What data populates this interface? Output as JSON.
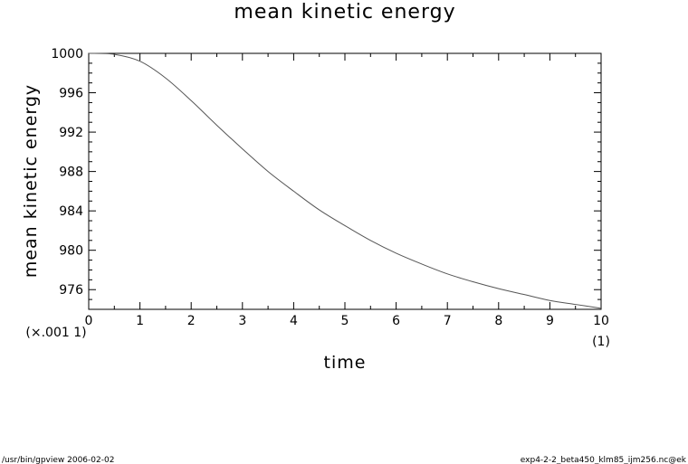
{
  "chart_data": {
    "type": "line",
    "title": "mean kinetic energy",
    "xlabel": "time",
    "ylabel": "mean kinetic energy",
    "x_unit": "(1)",
    "y_unit": "(×.001 1)",
    "xlim": [
      0,
      10
    ],
    "ylim": [
      974,
      1000
    ],
    "x_ticks": [
      "0",
      "1",
      "2",
      "3",
      "4",
      "5",
      "6",
      "7",
      "8",
      "9",
      "10"
    ],
    "y_ticks": [
      "976",
      "980",
      "984",
      "988",
      "992",
      "996",
      "1000"
    ],
    "grid": false,
    "series": [
      {
        "x": [
          0,
          0.5,
          1.0,
          1.5,
          2.0,
          2.5,
          3.0,
          3.5,
          4.0,
          4.5,
          5.0,
          5.5,
          6.0,
          6.5,
          7.0,
          7.5,
          8.0,
          8.5,
          9.0,
          9.5,
          10.0
        ],
        "y": [
          1000,
          999.9,
          999.2,
          997.5,
          995.2,
          992.7,
          990.3,
          988.0,
          986.0,
          984.1,
          982.5,
          981.0,
          979.7,
          978.6,
          977.6,
          976.8,
          976.1,
          975.5,
          974.9,
          974.5,
          974.1
        ]
      }
    ]
  },
  "footer": {
    "left": "/usr/bin/gpview   2006-02-02",
    "right": "exp4-2-2_beta450_klm85_ijm256.nc@ek"
  }
}
